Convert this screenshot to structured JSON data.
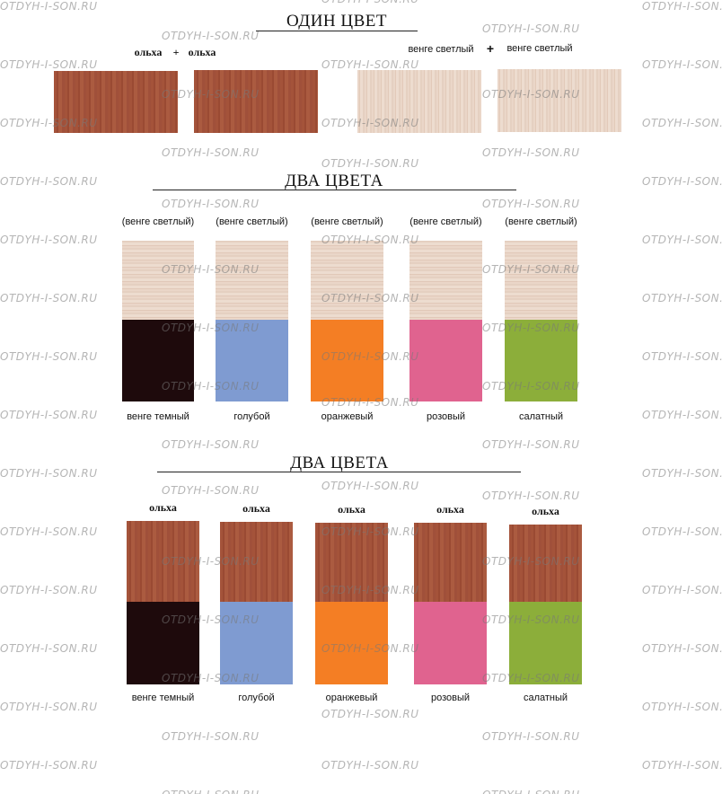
{
  "watermark": "OTDYH-I-SON.RU",
  "colors": {
    "alder": "#a4533a",
    "light_wenge": "#e8d3c4",
    "dark_wenge": "#1e0a0c",
    "blue": "#7f9bd1",
    "orange": "#f47e24",
    "pink": "#e0638f",
    "green": "#8cae3a"
  },
  "section1": {
    "title": "ОДИН ЦВЕТ",
    "left_label_a": "ольха",
    "left_plus": "+",
    "left_label_b": "ольха",
    "right_label_a": "венге светлый",
    "right_plus": "+",
    "right_label_b": "венге светлый"
  },
  "section2": {
    "title": "ДВА  ЦВЕТА",
    "items": [
      {
        "top": "(венге светлый)",
        "bottom": "венге темный",
        "color": "dark_wenge"
      },
      {
        "top": "(венге светлый)",
        "bottom": "голубой",
        "color": "blue"
      },
      {
        "top": "(венге светлый)",
        "bottom": "оранжевый",
        "color": "orange"
      },
      {
        "top": "(венге светлый)",
        "bottom": "розовый",
        "color": "pink"
      },
      {
        "top": "(венге светлый)",
        "bottom": "салатный",
        "color": "green"
      }
    ]
  },
  "section3": {
    "title": "ДВА  ЦВЕТА",
    "items": [
      {
        "top": "ольха",
        "bottom": "венге темный",
        "color": "dark_wenge"
      },
      {
        "top": "ольха",
        "bottom": "голубой",
        "color": "blue"
      },
      {
        "top": "ольха",
        "bottom": "оранжевый",
        "color": "orange"
      },
      {
        "top": "ольха",
        "bottom": "розовый",
        "color": "pink"
      },
      {
        "top": "ольха",
        "bottom": "салатный",
        "color": "green"
      }
    ]
  }
}
